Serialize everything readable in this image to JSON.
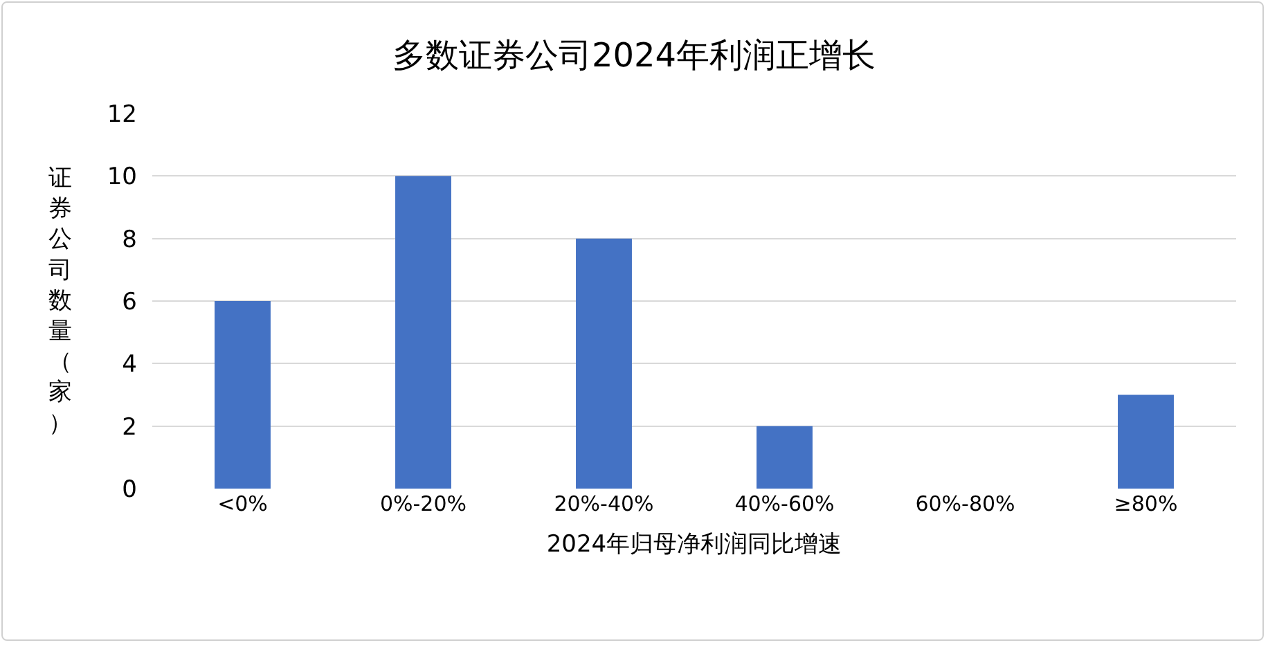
{
  "chart_data": {
    "type": "bar",
    "title": "多数证券公司2024年利润正增长",
    "xlabel": "2024年归母净利润同比增速",
    "ylabel": "证券公司数量（家）",
    "categories": [
      "<0%",
      "0%-20%",
      "20%-40%",
      "40%-60%",
      "60%-80%",
      "≥80%"
    ],
    "values": [
      6,
      10,
      8,
      2,
      0,
      3
    ],
    "color": "#4472c4",
    "ylim": [
      0,
      12
    ],
    "yticks": [
      0,
      2,
      4,
      6,
      8,
      10,
      12
    ],
    "grid": "y"
  }
}
